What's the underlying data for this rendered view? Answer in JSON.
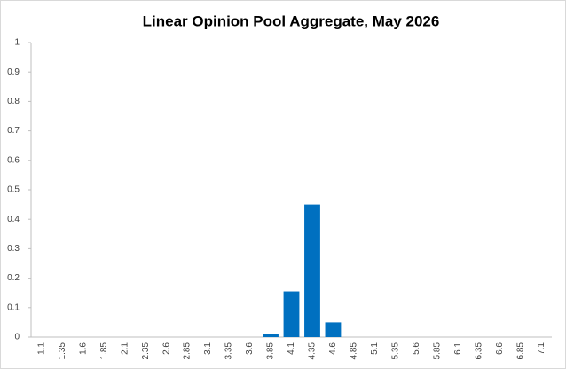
{
  "chart_data": {
    "type": "bar",
    "title": "Linear Opinion Pool Aggregate,  May 2026",
    "categories": [
      "1.1",
      "1.35",
      "1.6",
      "1.85",
      "2.1",
      "2.35",
      "2.6",
      "2.85",
      "3.1",
      "3.35",
      "3.6",
      "3.85",
      "4.1",
      "4.35",
      "4.6",
      "4.85",
      "5.1",
      "5.35",
      "5.6",
      "5.85",
      "6.1",
      "6.35",
      "6.6",
      "6.85",
      "7.1"
    ],
    "values": [
      0,
      0,
      0,
      0,
      0,
      0,
      0,
      0,
      0,
      0,
      0,
      0.01,
      0.155,
      0.45,
      0.05,
      0,
      0,
      0,
      0,
      0,
      0,
      0,
      0,
      0,
      0
    ],
    "color": "#0070c0",
    "ylim": [
      0,
      1
    ],
    "yticks": [
      0,
      0.1,
      0.2,
      0.3,
      0.4,
      0.5,
      0.6,
      0.7,
      0.8,
      0.9,
      1
    ],
    "grid": false
  }
}
